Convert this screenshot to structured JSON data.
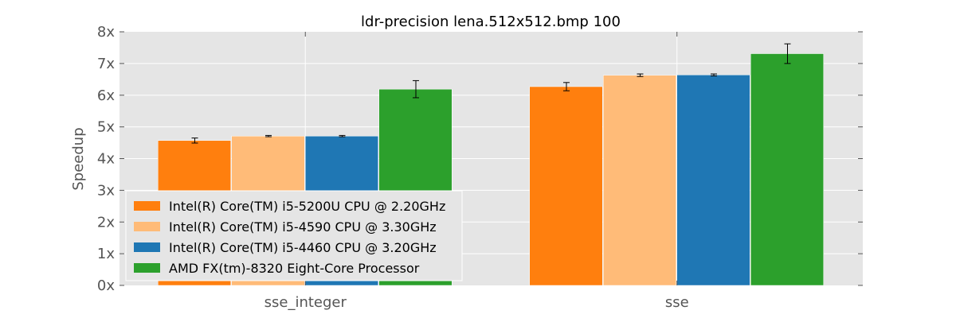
{
  "chart_data": {
    "type": "bar",
    "title": "ldr-precision lena.512x512.bmp 100",
    "xlabel": "",
    "ylabel": "Speedup",
    "categories": [
      "sse_integer",
      "sse"
    ],
    "ylim": [
      0,
      8
    ],
    "yticks": [
      "0x",
      "1x",
      "2x",
      "3x",
      "4x",
      "5x",
      "6x",
      "7x",
      "8x"
    ],
    "grid": true,
    "legend_position": "lower-left",
    "series": [
      {
        "name": "Intel(R) Core(TM) i5-5200U CPU @ 2.20GHz",
        "color": "#ff7f0e",
        "values": [
          4.57,
          6.27
        ],
        "errors": [
          0.08,
          0.13
        ]
      },
      {
        "name": "Intel(R) Core(TM) i5-4590 CPU @ 3.30GHz",
        "color": "#ffbb78",
        "values": [
          4.71,
          6.63
        ],
        "errors": [
          0.02,
          0.04
        ]
      },
      {
        "name": "Intel(R) Core(TM) i5-4460  CPU @ 3.20GHz",
        "color": "#1f77b4",
        "values": [
          4.71,
          6.64
        ],
        "errors": [
          0.02,
          0.03
        ]
      },
      {
        "name": "AMD FX(tm)-8320 Eight-Core Processor",
        "color": "#2ca02c",
        "values": [
          6.19,
          7.31
        ],
        "errors": [
          0.27,
          0.31
        ]
      }
    ]
  }
}
